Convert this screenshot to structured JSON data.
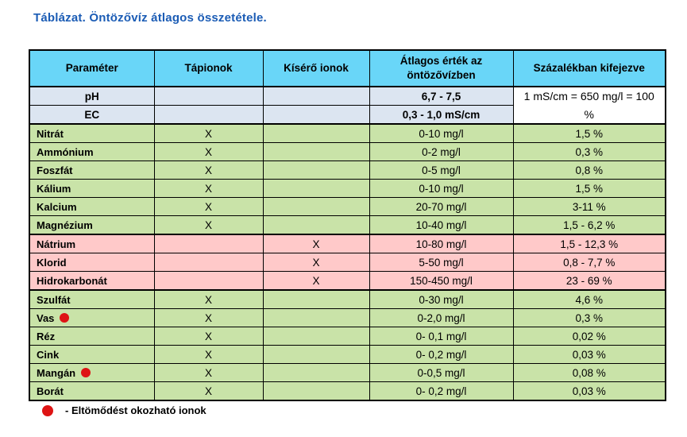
{
  "title": "Táblázat. Öntözővíz átlagos összetétele.",
  "colors": {
    "title_color": "#1b5cb5",
    "header_bg": "#69d6f8",
    "ph_ec_bg": "#dce5f1",
    "nutrient_bg": "#c9e3a8",
    "accompanying_bg": "#ffc9c9",
    "dot_color": "#de1414",
    "border_color": "#000000"
  },
  "table": {
    "columns": [
      "Paraméter",
      "Tápionok",
      "Kísérő ionok",
      "Átlagos érték az öntözővízben",
      "Százalékban kifejezve"
    ],
    "merged_percent_note": "1 mS/cm = 650 mg/l = 100 %",
    "rows": [
      {
        "param": "pH",
        "tapionok": "",
        "kisero_ionok": "",
        "value": "6,7 - 7,5",
        "percent": "",
        "group": "ph_ec",
        "dot": false,
        "value_bold": true,
        "param_centered": true
      },
      {
        "param": "EC",
        "tapionok": "",
        "kisero_ionok": "",
        "value": "0,3 - 1,0 mS/cm",
        "percent": "",
        "group": "ph_ec",
        "dot": false,
        "value_bold": true,
        "param_centered": true
      },
      {
        "param": "Nitrát",
        "tapionok": "X",
        "kisero_ionok": "",
        "value": "0-10 mg/l",
        "percent": "1,5 %",
        "group": "nutrient",
        "dot": false,
        "value_bold": false,
        "param_centered": false
      },
      {
        "param": "Ammónium",
        "tapionok": "X",
        "kisero_ionok": "",
        "value": "0-2 mg/l",
        "percent": "0,3 %",
        "group": "nutrient",
        "dot": false,
        "value_bold": false,
        "param_centered": false
      },
      {
        "param": "Foszfát",
        "tapionok": "X",
        "kisero_ionok": "",
        "value": "0-5 mg/l",
        "percent": "0,8 %",
        "group": "nutrient",
        "dot": false,
        "value_bold": false,
        "param_centered": false
      },
      {
        "param": "Kálium",
        "tapionok": "X",
        "kisero_ionok": "",
        "value": "0-10 mg/l",
        "percent": "1,5 %",
        "group": "nutrient",
        "dot": false,
        "value_bold": false,
        "param_centered": false
      },
      {
        "param": "Kalcium",
        "tapionok": "X",
        "kisero_ionok": "",
        "value": "20-70 mg/l",
        "percent": "3-11 %",
        "group": "nutrient",
        "dot": false,
        "value_bold": false,
        "param_centered": false
      },
      {
        "param": "Magnézium",
        "tapionok": "X",
        "kisero_ionok": "",
        "value": "10-40 mg/l",
        "percent": "1,5 - 6,2 %",
        "group": "nutrient",
        "dot": false,
        "value_bold": false,
        "param_centered": false
      },
      {
        "param": "Nátrium",
        "tapionok": "",
        "kisero_ionok": "X",
        "value": "10-80 mg/l",
        "percent": "1,5 - 12,3 %",
        "group": "accompanying",
        "dot": false,
        "value_bold": false,
        "param_centered": false
      },
      {
        "param": "Klorid",
        "tapionok": "",
        "kisero_ionok": "X",
        "value": "5-50 mg/l",
        "percent": "0,8 - 7,7 %",
        "group": "accompanying",
        "dot": false,
        "value_bold": false,
        "param_centered": false
      },
      {
        "param": "Hidrokarbonát",
        "tapionok": "",
        "kisero_ionok": "X",
        "value": "150-450 mg/l",
        "percent": "23 - 69 %",
        "group": "accompanying",
        "dot": false,
        "value_bold": false,
        "param_centered": false
      },
      {
        "param": "Szulfát",
        "tapionok": "X",
        "kisero_ionok": "",
        "value": "0-30 mg/l",
        "percent": "4,6 %",
        "group": "nutrient",
        "dot": false,
        "value_bold": false,
        "param_centered": false
      },
      {
        "param": "Vas",
        "tapionok": "X",
        "kisero_ionok": "",
        "value": "0-2,0 mg/l",
        "percent": "0,3 %",
        "group": "nutrient",
        "dot": true,
        "value_bold": false,
        "param_centered": false
      },
      {
        "param": "Réz",
        "tapionok": "X",
        "kisero_ionok": "",
        "value": "0- 0,1 mg/l",
        "percent": "0,02 %",
        "group": "nutrient",
        "dot": false,
        "value_bold": false,
        "param_centered": false
      },
      {
        "param": "Cink",
        "tapionok": "X",
        "kisero_ionok": "",
        "value": "0- 0,2 mg/l",
        "percent": "0,03 %",
        "group": "nutrient",
        "dot": false,
        "value_bold": false,
        "param_centered": false
      },
      {
        "param": "Mangán",
        "tapionok": "X",
        "kisero_ionok": "",
        "value": "0-0,5 mg/l",
        "percent": "0,08 %",
        "group": "nutrient",
        "dot": true,
        "value_bold": false,
        "param_centered": false
      },
      {
        "param": "Borát",
        "tapionok": "X",
        "kisero_ionok": "",
        "value": "0- 0,2 mg/l",
        "percent": "0,03 %",
        "group": "nutrient",
        "dot": false,
        "value_bold": false,
        "param_centered": false
      }
    ]
  },
  "legend": {
    "dot_icon": "red-circle",
    "label": "- Eltömődést okozható ionok"
  }
}
